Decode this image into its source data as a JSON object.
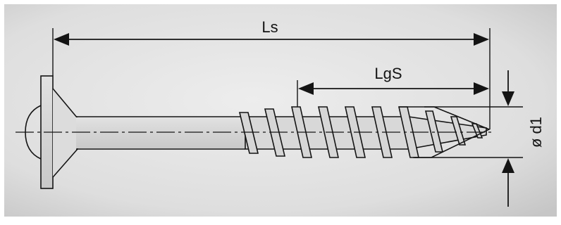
{
  "dimensions": {
    "overall_length_label": "Ls",
    "thread_length_label": "LgS",
    "diameter_label": "ø d1"
  },
  "colors": {
    "background_light": "#ececec",
    "background_dark": "#c8c8c8",
    "line": "#141414",
    "screw_fill": "#d9d9d9"
  }
}
